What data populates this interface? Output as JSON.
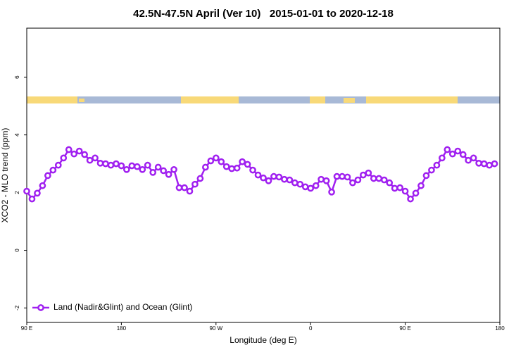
{
  "chart_data": {
    "type": "line",
    "title": "42.5N-47.5N April (Ver 10)   2015-01-01 to 2020-12-18",
    "x_label": "Longitude (deg E)",
    "y_label": "XCO2 - MLO trend (ppm)",
    "x": [
      90,
      95,
      100,
      105,
      110,
      115,
      120,
      125,
      130,
      135,
      140,
      145,
      150,
      155,
      160,
      165,
      170,
      175,
      180,
      185,
      190,
      195,
      200,
      205,
      210,
      215,
      220,
      225,
      230,
      235,
      240,
      245,
      250,
      255,
      260,
      265,
      270,
      275,
      280,
      285,
      290,
      295,
      300,
      305,
      310,
      315,
      320,
      325,
      330,
      335,
      340,
      345,
      350,
      355,
      360,
      365,
      370,
      375,
      380,
      385,
      390,
      395,
      400,
      405,
      410,
      415,
      420,
      425,
      430,
      435,
      440,
      445,
      450,
      455,
      460,
      465,
      470,
      475,
      480,
      485,
      490,
      495,
      500,
      505,
      510,
      515,
      520,
      525,
      530,
      535
    ],
    "series": [
      {
        "name": "Land (Nadir&Glint) and Ocean (Glint)",
        "color": "#a020f0",
        "values": [
          2.05,
          1.78,
          1.98,
          2.24,
          2.59,
          2.78,
          2.95,
          3.2,
          3.49,
          3.34,
          3.44,
          3.32,
          3.12,
          3.2,
          3.02,
          3.0,
          2.95,
          3.0,
          2.93,
          2.8,
          2.93,
          2.9,
          2.8,
          2.95,
          2.7,
          2.88,
          2.76,
          2.63,
          2.8,
          2.17,
          2.17,
          2.05,
          2.29,
          2.49,
          2.88,
          3.1,
          3.2,
          3.07,
          2.9,
          2.83,
          2.85,
          3.07,
          2.98,
          2.78,
          2.61,
          2.51,
          2.41,
          2.56,
          2.54,
          2.46,
          2.44,
          2.34,
          2.29,
          2.2,
          2.15,
          2.24,
          2.46,
          2.41,
          2.02,
          2.56,
          2.56,
          2.54,
          2.34,
          2.44,
          2.61,
          2.68,
          2.49,
          2.49,
          2.44,
          2.34,
          2.15,
          2.17,
          2.05,
          1.78,
          1.98,
          2.24,
          2.59,
          2.78,
          2.95,
          3.2,
          3.49,
          3.34,
          3.44,
          3.32,
          3.12,
          3.2,
          3.02,
          3.0,
          2.95,
          3.0
        ]
      }
    ],
    "xlim": [
      90,
      540
    ],
    "xticks": [
      {
        "value": 90,
        "label": "90 E"
      },
      180,
      {
        "value": 270,
        "label": "90 W"
      },
      {
        "value": 360,
        "label": "0"
      },
      {
        "value": 450,
        "label": "90 E"
      },
      {
        "value": 540,
        "label": "180"
      }
    ],
    "ylim": [
      -2.5,
      7.7
    ],
    "yticks": [
      -2,
      0,
      2,
      4,
      6
    ],
    "legend": "bottom-left"
  }
}
